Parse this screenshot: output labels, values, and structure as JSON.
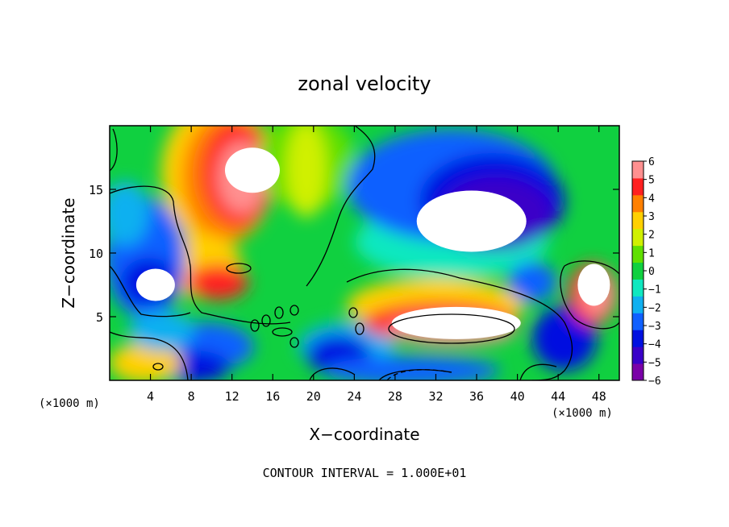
{
  "chart_data": {
    "type": "heatmap",
    "title": "zonal velocity",
    "xlabel": "X−coordinate",
    "ylabel": "Z−coordinate",
    "x_unit": "(×1000 m)",
    "y_unit": "(×1000 m)",
    "footer": "CONTOUR INTERVAL = 1.000E+01",
    "xlim": [
      0,
      50
    ],
    "ylim": [
      0,
      20
    ],
    "x_ticks": [
      4,
      8,
      12,
      16,
      20,
      24,
      28,
      32,
      36,
      40,
      44,
      48
    ],
    "y_ticks": [
      5,
      10,
      15
    ],
    "colorbar": {
      "min": -6,
      "max": 6,
      "ticks": [
        6,
        5,
        4,
        3,
        2,
        1,
        0,
        -1,
        -2,
        -3,
        -4,
        -5,
        -6
      ],
      "tick_labels": [
        "6",
        "5",
        "4",
        "3",
        "2",
        "1",
        "0",
        "−1",
        "−2",
        "−3",
        "−4",
        "−5",
        "−6"
      ],
      "colors": [
        "#7a00a8",
        "#3a00c8",
        "#0010e0",
        "#1060ff",
        "#10b0f0",
        "#10e8c0",
        "#10d040",
        "#60e000",
        "#d0f000",
        "#ffd000",
        "#ff8000",
        "#ff2020",
        "#ff9090"
      ]
    },
    "grid": false,
    "features": [
      {
        "label": "positive jet core (> 6)",
        "x": 14,
        "z": 16.5,
        "value": 6
      },
      {
        "label": "negative core upper right (< -6)",
        "x": 35.5,
        "z": 12.5,
        "value": -6
      },
      {
        "label": "negative core left",
        "x": 4.5,
        "z": 7.5,
        "value": -6
      },
      {
        "label": "positive core lower (> 6)",
        "x": 34,
        "z": 4.5,
        "value": 6
      },
      {
        "label": "positive core right",
        "x": 47.5,
        "z": 7.5,
        "value": 6
      }
    ]
  }
}
